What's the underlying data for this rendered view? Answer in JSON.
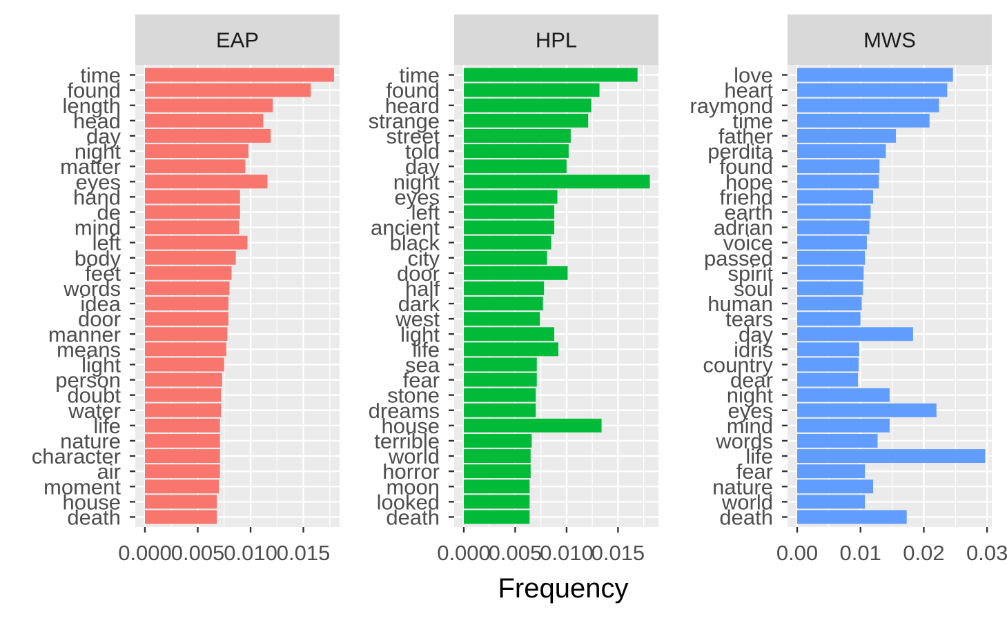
{
  "chart_data": {
    "type": "bar",
    "orientation": "horizontal",
    "xlabel": "Frequency",
    "ylabel": "",
    "grid": true,
    "legend": "none",
    "facets": [
      {
        "label": "EAP",
        "color": "#F8766D",
        "xlim": [
          0,
          0.0181
        ],
        "ticks": [
          0.0,
          0.005,
          0.01,
          0.015
        ],
        "tick_labels": [
          "0.000",
          "0.005",
          "0.010",
          "0.015"
        ],
        "categories": [
          "time",
          "found",
          "length",
          "head",
          "day",
          "night",
          "matter",
          "eyes",
          "hand",
          "de",
          "mind",
          "left",
          "body",
          "feet",
          "words",
          "idea",
          "door",
          "manner",
          "means",
          "light",
          "person",
          "doubt",
          "water",
          "life",
          "nature",
          "character",
          "air",
          "moment",
          "house",
          "death"
        ],
        "values": [
          0.0179,
          0.0157,
          0.0121,
          0.0112,
          0.0119,
          0.0098,
          0.0095,
          0.0116,
          0.009,
          0.009,
          0.0089,
          0.0097,
          0.0086,
          0.0082,
          0.008,
          0.0079,
          0.0079,
          0.0078,
          0.0077,
          0.0075,
          0.0073,
          0.0072,
          0.0072,
          0.0071,
          0.0071,
          0.0071,
          0.0071,
          0.007,
          0.0068,
          0.0068
        ]
      },
      {
        "label": "HPL",
        "color": "#00BA38",
        "xlim": [
          0,
          0.0186
        ],
        "ticks": [
          0.0,
          0.005,
          0.01,
          0.015
        ],
        "tick_labels": [
          "0.000",
          "0.005",
          "0.010",
          "0.015"
        ],
        "categories": [
          "time",
          "found",
          "heard",
          "strange",
          "street",
          "told",
          "day",
          "night",
          "eyes",
          "left",
          "ancient",
          "black",
          "city",
          "door",
          "half",
          "dark",
          "west",
          "light",
          "life",
          "sea",
          "fear",
          "stone",
          "dreams",
          "house",
          "terrible",
          "world",
          "horror",
          "moon",
          "looked",
          "death"
        ],
        "values": [
          0.0169,
          0.0132,
          0.0124,
          0.0121,
          0.0104,
          0.0102,
          0.01,
          0.0181,
          0.0091,
          0.0088,
          0.0088,
          0.0085,
          0.0081,
          0.0101,
          0.0078,
          0.0077,
          0.0074,
          0.0088,
          0.0092,
          0.0071,
          0.0071,
          0.007,
          0.007,
          0.0134,
          0.0066,
          0.0065,
          0.0065,
          0.0064,
          0.0064,
          0.0064
        ]
      },
      {
        "label": "MWS",
        "color": "#619CFF",
        "xlim": [
          0,
          0.0302
        ],
        "ticks": [
          0.0,
          0.01,
          0.02,
          0.03
        ],
        "tick_labels": [
          "0.00",
          "0.01",
          "0.02",
          "0.03"
        ],
        "categories": [
          "love",
          "heart",
          "raymond",
          "time",
          "father",
          "perdita",
          "found",
          "hope",
          "friend",
          "earth",
          "adrian",
          "voice",
          "passed",
          "spirit",
          "soul",
          "human",
          "tears",
          "day",
          "idris",
          "country",
          "dear",
          "night",
          "eyes",
          "mind",
          "words",
          "life",
          "fear",
          "nature",
          "world",
          "death"
        ],
        "values": [
          0.0246,
          0.0237,
          0.0224,
          0.0209,
          0.0156,
          0.014,
          0.013,
          0.0129,
          0.012,
          0.0116,
          0.0114,
          0.011,
          0.0107,
          0.0105,
          0.0104,
          0.0102,
          0.01,
          0.0183,
          0.0098,
          0.0097,
          0.0096,
          0.0146,
          0.022,
          0.0146,
          0.0127,
          0.0297,
          0.0107,
          0.012,
          0.0107,
          0.0173
        ]
      }
    ]
  }
}
